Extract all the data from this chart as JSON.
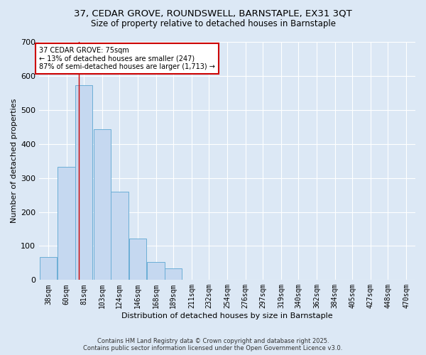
{
  "title1": "37, CEDAR GROVE, ROUNDSWELL, BARNSTAPLE, EX31 3QT",
  "title2": "Size of property relative to detached houses in Barnstaple",
  "xlabel": "Distribution of detached houses by size in Barnstaple",
  "ylabel": "Number of detached properties",
  "bar_values": [
    68,
    333,
    572,
    443,
    260,
    122,
    52,
    35,
    0,
    0,
    0,
    0,
    0,
    0,
    0,
    0,
    0,
    0,
    0,
    0,
    0
  ],
  "categories": [
    "38sqm",
    "60sqm",
    "81sqm",
    "103sqm",
    "124sqm",
    "146sqm",
    "168sqm",
    "189sqm",
    "211sqm",
    "232sqm",
    "254sqm",
    "276sqm",
    "297sqm",
    "319sqm",
    "340sqm",
    "362sqm",
    "384sqm",
    "405sqm",
    "427sqm",
    "448sqm",
    "470sqm"
  ],
  "bar_color": "#c5d8f0",
  "bar_edge_color": "#6baed6",
  "bin_width": 22,
  "bin_centers": [
    38,
    60,
    81,
    103,
    124,
    146,
    168,
    189,
    211,
    232,
    254,
    276,
    297,
    319,
    340,
    362,
    384,
    405,
    427,
    448,
    470
  ],
  "property_line_x": 75,
  "ylim": [
    0,
    700
  ],
  "yticks": [
    0,
    100,
    200,
    300,
    400,
    500,
    600,
    700
  ],
  "annotation_title": "37 CEDAR GROVE: 75sqm",
  "annotation_line1": "← 13% of detached houses are smaller (247)",
  "annotation_line2": "87% of semi-detached houses are larger (1,713) →",
  "annotation_box_facecolor": "#ffffff",
  "annotation_box_edgecolor": "#cc0000",
  "footer1": "Contains HM Land Registry data © Crown copyright and database right 2025.",
  "footer2": "Contains public sector information licensed under the Open Government Licence v3.0.",
  "bg_color": "#dce8f5",
  "grid_color": "#ffffff",
  "title_fontsize": 9.5,
  "subtitle_fontsize": 8.5,
  "axis_label_fontsize": 8,
  "tick_fontsize": 7,
  "footer_fontsize": 6,
  "annotation_fontsize": 7
}
